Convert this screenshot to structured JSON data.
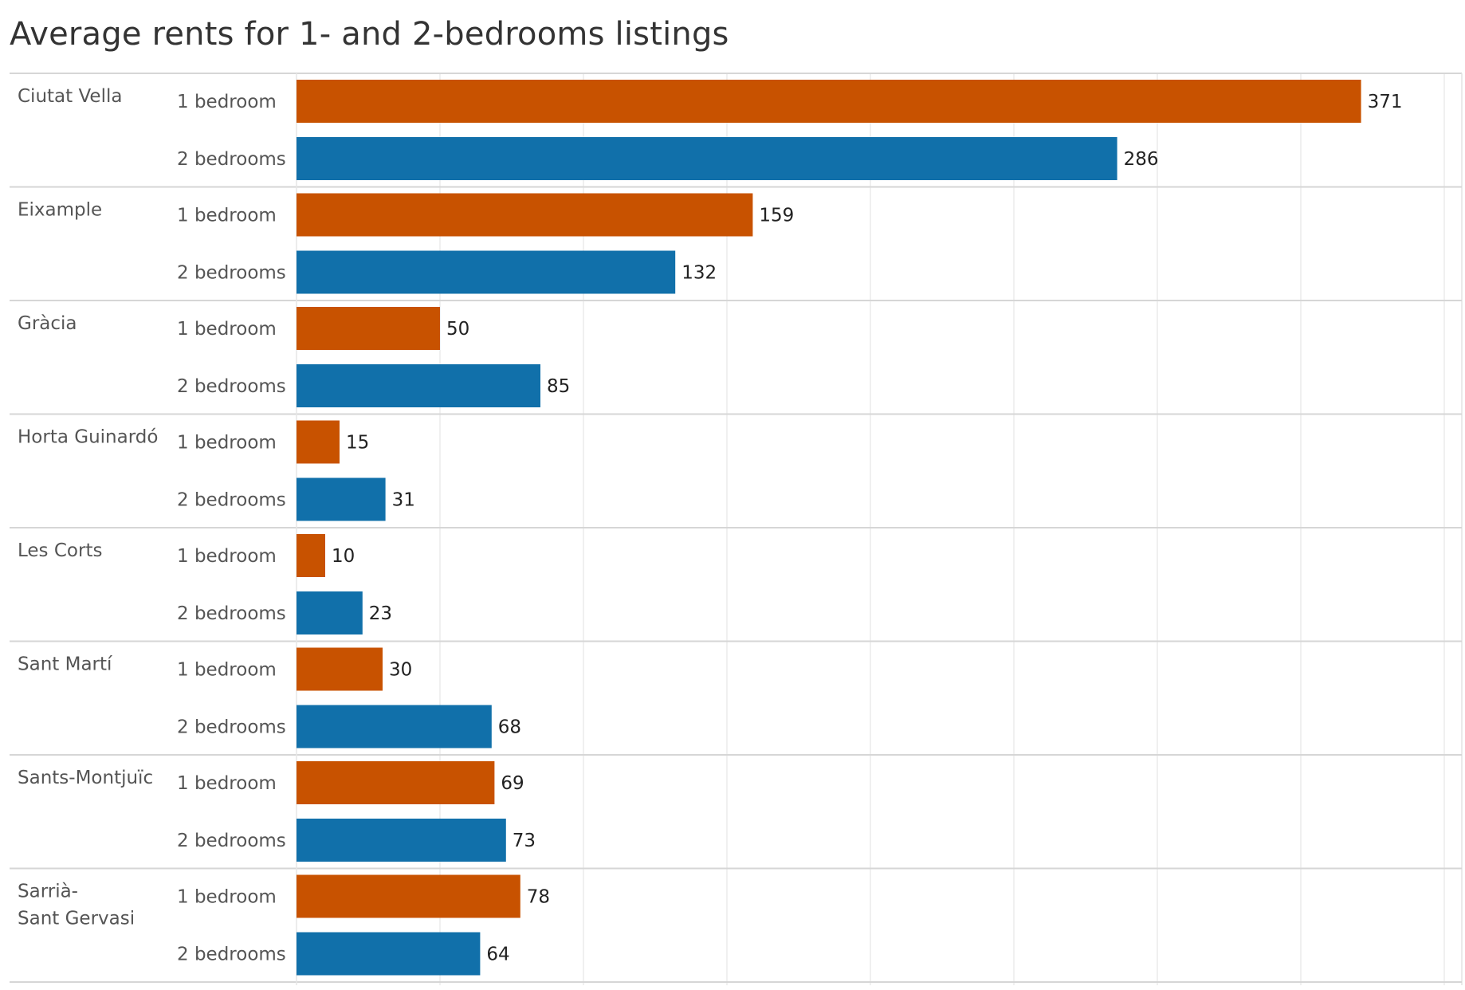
{
  "chart_data": {
    "type": "bar",
    "orientation": "horizontal",
    "title": "Average rents for 1- and 2-bedrooms listings",
    "xlabel": "",
    "ylabel": "",
    "xlim": [
      0,
      400
    ],
    "grid": true,
    "show_x_ticks": false,
    "legend": "none",
    "subcategories": [
      "1 bedroom",
      "2 bedrooms"
    ],
    "colors": {
      "1 bedroom": "#c85200",
      "2 bedrooms": "#1170aa"
    },
    "groups": [
      {
        "name": "Ciutat Vella",
        "values": [
          371,
          286
        ]
      },
      {
        "name": "Eixample",
        "values": [
          159,
          132
        ]
      },
      {
        "name": "Gràcia",
        "values": [
          50,
          85
        ]
      },
      {
        "name": "Horta Guinardó",
        "values": [
          15,
          31
        ]
      },
      {
        "name": "Les Corts",
        "values": [
          10,
          23
        ]
      },
      {
        "name": "Sant Martí",
        "values": [
          30,
          68
        ]
      },
      {
        "name": "Sants-Montjuïc",
        "values": [
          69,
          73
        ]
      },
      {
        "name": "Sarrià-Sant Gervasi",
        "values": [
          78,
          64
        ]
      }
    ]
  }
}
